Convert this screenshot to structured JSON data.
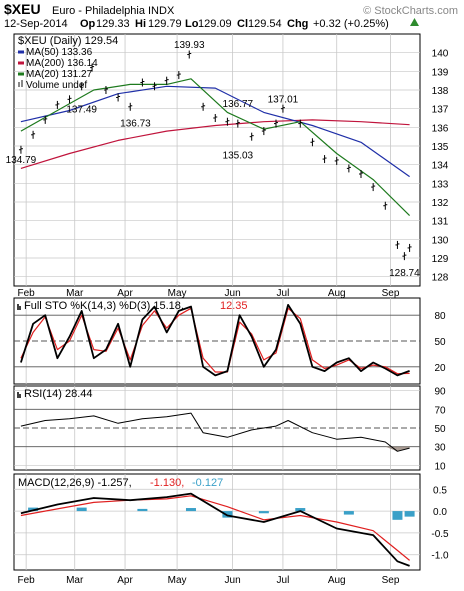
{
  "header": {
    "symbol": "$XEU",
    "description": "Euro - Philadelphia INDX",
    "watermark": "© StockCharts.com",
    "date": "12-Sep-2014",
    "quote": {
      "op_label": "Op",
      "op": "129.33",
      "hi_label": "Hi",
      "hi": "129.79",
      "lo_label": "Lo",
      "lo": "129.09",
      "cl_label": "Cl",
      "cl": "129.54",
      "chg_label": "Chg",
      "chg": "+0.32 (+0.25%)"
    },
    "trend_icon": "up-triangle-icon"
  },
  "colors": {
    "price": "#000000",
    "ma50": "#1f2fa8",
    "ma200": "#c0143c",
    "ma20": "#1e7a1e",
    "sto_k": "#000000",
    "sto_d": "#e02020",
    "rsi": "#000000",
    "macd": "#000000",
    "signal": "#e02020",
    "hist": "#3aa0c8",
    "grid": "#c8c8c8",
    "refline": "#555555"
  },
  "legend": [
    {
      "text": "$XEU (Daily) 129.54"
    },
    {
      "text": "MA(50) 133.36"
    },
    {
      "text": "MA(200) 136.14"
    },
    {
      "text": "MA(20) 131.27"
    },
    {
      "text": "Volume undef"
    }
  ],
  "chart_data": [
    {
      "type": "line",
      "panel": "price",
      "title": "$XEU (Daily) 129.54",
      "ylim": [
        127.5,
        141
      ],
      "y_ticks": [
        "140",
        "139",
        "138",
        "137",
        "136",
        "135",
        "134",
        "133",
        "132",
        "131",
        "130",
        "129",
        "128"
      ],
      "x_tick_labels": [
        "Feb",
        "Mar",
        "Apr",
        "May",
        "Jun",
        "Jul",
        "Aug",
        "Sep"
      ],
      "x_tick_dates": [
        "2014-02-03",
        "2014-03-03",
        "2014-04-01",
        "2014-05-01",
        "2014-06-02",
        "2014-07-01",
        "2014-08-01",
        "2014-09-01"
      ],
      "x_range": [
        "2014-01-27",
        "2014-09-18"
      ],
      "series": [
        {
          "name": "$XEU (Daily)",
          "x": [
            "2014-01-31",
            "2014-02-07",
            "2014-02-14",
            "2014-02-21",
            "2014-02-28",
            "2014-03-07",
            "2014-03-13",
            "2014-03-21",
            "2014-03-28",
            "2014-04-04",
            "2014-04-11",
            "2014-04-18",
            "2014-04-25",
            "2014-05-02",
            "2014-05-08",
            "2014-05-16",
            "2014-05-23",
            "2014-05-30",
            "2014-06-05",
            "2014-06-13",
            "2014-06-20",
            "2014-06-27",
            "2014-07-01",
            "2014-07-11",
            "2014-07-18",
            "2014-07-25",
            "2014-08-01",
            "2014-08-08",
            "2014-08-15",
            "2014-08-22",
            "2014-08-29",
            "2014-09-05",
            "2014-09-09",
            "2014-09-12"
          ],
          "values": [
            134.8,
            135.6,
            136.4,
            137.2,
            137.5,
            138.2,
            139.2,
            138.0,
            137.6,
            137.1,
            138.4,
            138.2,
            138.5,
            138.8,
            139.9,
            137.1,
            136.5,
            136.3,
            136.2,
            135.5,
            135.8,
            136.2,
            137.0,
            136.2,
            135.2,
            134.3,
            134.2,
            133.8,
            133.5,
            132.8,
            131.8,
            129.7,
            129.1,
            129.54
          ]
        },
        {
          "name": "MA(50)",
          "x": [
            "2014-01-31",
            "2014-02-28",
            "2014-03-28",
            "2014-04-25",
            "2014-05-23",
            "2014-06-20",
            "2014-07-18",
            "2014-08-15",
            "2014-09-12"
          ],
          "values": [
            136.3,
            136.9,
            137.8,
            138.2,
            138.1,
            136.8,
            136.1,
            135.2,
            133.36
          ]
        },
        {
          "name": "MA(200)",
          "x": [
            "2014-01-31",
            "2014-02-28",
            "2014-03-28",
            "2014-04-25",
            "2014-05-23",
            "2014-06-20",
            "2014-07-18",
            "2014-08-15",
            "2014-09-12"
          ],
          "values": [
            133.8,
            134.6,
            135.3,
            135.8,
            136.1,
            136.3,
            136.4,
            136.3,
            136.14
          ]
        },
        {
          "name": "MA(20)",
          "x": [
            "2014-01-31",
            "2014-02-21",
            "2014-03-14",
            "2014-04-04",
            "2014-04-25",
            "2014-05-09",
            "2014-05-30",
            "2014-06-20",
            "2014-07-11",
            "2014-08-01",
            "2014-08-22",
            "2014-09-12"
          ],
          "values": [
            135.8,
            136.9,
            138.0,
            138.3,
            138.3,
            138.6,
            136.8,
            135.9,
            136.3,
            134.6,
            133.2,
            131.27
          ]
        }
      ],
      "annotations": [
        {
          "date": "2014-01-31",
          "value": 134.79,
          "text": "134.79",
          "pos": "below"
        },
        {
          "date": "2014-03-07",
          "value": 137.49,
          "text": "137.49",
          "pos": "below"
        },
        {
          "date": "2014-04-07",
          "value": 136.73,
          "text": "136.73",
          "pos": "below"
        },
        {
          "date": "2014-05-08",
          "value": 139.93,
          "text": "139.93",
          "pos": "above"
        },
        {
          "date": "2014-06-05",
          "value": 136.77,
          "text": "136.77",
          "pos": "above"
        },
        {
          "date": "2014-06-05",
          "value": 135.03,
          "text": "135.03",
          "pos": "below"
        },
        {
          "date": "2014-07-01",
          "value": 137.01,
          "text": "137.01",
          "pos": "above"
        },
        {
          "date": "2014-09-09",
          "value": 128.74,
          "text": "128.74",
          "pos": "below"
        }
      ]
    },
    {
      "type": "line",
      "panel": "sto",
      "title": "Full STO %K(14,3) %D(3) 15.18, 12.35",
      "ylim": [
        0,
        100
      ],
      "y_ticks": [
        "80",
        "50",
        "20"
      ],
      "ref_lines": [
        80,
        50,
        20
      ],
      "series": [
        {
          "name": "%K",
          "x": [
            "2014-01-31",
            "2014-02-07",
            "2014-02-14",
            "2014-02-21",
            "2014-02-28",
            "2014-03-07",
            "2014-03-14",
            "2014-03-21",
            "2014-03-28",
            "2014-04-04",
            "2014-04-11",
            "2014-04-18",
            "2014-04-25",
            "2014-05-02",
            "2014-05-09",
            "2014-05-16",
            "2014-05-23",
            "2014-05-30",
            "2014-06-06",
            "2014-06-13",
            "2014-06-20",
            "2014-06-27",
            "2014-07-04",
            "2014-07-11",
            "2014-07-18",
            "2014-07-25",
            "2014-08-01",
            "2014-08-08",
            "2014-08-15",
            "2014-08-22",
            "2014-08-29",
            "2014-09-05",
            "2014-09-12"
          ],
          "values": [
            25,
            70,
            80,
            30,
            55,
            85,
            30,
            40,
            70,
            20,
            75,
            90,
            60,
            85,
            90,
            20,
            10,
            15,
            80,
            55,
            20,
            40,
            92,
            70,
            20,
            15,
            25,
            30,
            15,
            25,
            18,
            10,
            15.18
          ]
        },
        {
          "name": "%D",
          "x": [
            "2014-01-31",
            "2014-02-07",
            "2014-02-14",
            "2014-02-21",
            "2014-02-28",
            "2014-03-07",
            "2014-03-14",
            "2014-03-21",
            "2014-03-28",
            "2014-04-04",
            "2014-04-11",
            "2014-04-18",
            "2014-04-25",
            "2014-05-02",
            "2014-05-09",
            "2014-05-16",
            "2014-05-23",
            "2014-05-30",
            "2014-06-06",
            "2014-06-13",
            "2014-06-20",
            "2014-06-27",
            "2014-07-04",
            "2014-07-11",
            "2014-07-18",
            "2014-07-25",
            "2014-08-01",
            "2014-08-08",
            "2014-08-15",
            "2014-08-22",
            "2014-08-29",
            "2014-09-05",
            "2014-09-12"
          ],
          "values": [
            30,
            60,
            78,
            40,
            50,
            80,
            40,
            38,
            65,
            28,
            68,
            85,
            65,
            80,
            88,
            30,
            14,
            14,
            72,
            58,
            28,
            36,
            88,
            76,
            28,
            18,
            22,
            28,
            18,
            22,
            20,
            12,
            12.35
          ]
        }
      ]
    },
    {
      "type": "line",
      "panel": "rsi",
      "title": "RSI(14) 28.44",
      "ylim": [
        5,
        95
      ],
      "y_ticks": [
        "90",
        "70",
        "50",
        "30",
        "10"
      ],
      "ref_lines": [
        70,
        50,
        30
      ],
      "series": [
        {
          "name": "RSI(14)",
          "x": [
            "2014-01-31",
            "2014-02-14",
            "2014-02-28",
            "2014-03-14",
            "2014-03-28",
            "2014-04-11",
            "2014-04-25",
            "2014-05-09",
            "2014-05-16",
            "2014-05-30",
            "2014-06-13",
            "2014-06-27",
            "2014-07-04",
            "2014-07-18",
            "2014-08-01",
            "2014-08-15",
            "2014-08-29",
            "2014-09-05",
            "2014-09-12"
          ],
          "values": [
            52,
            58,
            60,
            63,
            55,
            60,
            62,
            66,
            45,
            40,
            48,
            52,
            58,
            45,
            38,
            40,
            35,
            25,
            28.44
          ]
        }
      ]
    },
    {
      "type": "line",
      "panel": "macd",
      "title": "MACD(12,26,9) -1.257, -1.130, -0.127",
      "ylim": [
        -1.35,
        0.85
      ],
      "y_ticks": [
        "0.5",
        "0.0",
        "-0.5",
        "-1.0"
      ],
      "series": [
        {
          "name": "MACD",
          "x": [
            "2014-01-31",
            "2014-02-21",
            "2014-03-14",
            "2014-04-04",
            "2014-04-25",
            "2014-05-09",
            "2014-05-30",
            "2014-06-20",
            "2014-07-11",
            "2014-08-01",
            "2014-08-22",
            "2014-09-05",
            "2014-09-12"
          ],
          "values": [
            -0.05,
            0.15,
            0.3,
            0.25,
            0.32,
            0.4,
            -0.1,
            -0.25,
            0.0,
            -0.4,
            -0.55,
            -1.15,
            -1.257
          ]
        },
        {
          "name": "Signal",
          "x": [
            "2014-01-31",
            "2014-02-21",
            "2014-03-14",
            "2014-04-04",
            "2014-04-25",
            "2014-05-09",
            "2014-05-30",
            "2014-06-20",
            "2014-07-11",
            "2014-08-01",
            "2014-08-22",
            "2014-09-05",
            "2014-09-12"
          ],
          "values": [
            -0.1,
            0.05,
            0.2,
            0.25,
            0.28,
            0.35,
            0.1,
            -0.2,
            -0.1,
            -0.25,
            -0.45,
            -0.9,
            -1.13
          ]
        },
        {
          "name": "Histogram",
          "x": [
            "2014-02-07",
            "2014-03-07",
            "2014-04-11",
            "2014-05-09",
            "2014-05-30",
            "2014-06-20",
            "2014-07-11",
            "2014-08-08",
            "2014-09-05",
            "2014-09-12"
          ],
          "values": [
            0.08,
            0.08,
            0.05,
            0.07,
            -0.15,
            -0.05,
            0.07,
            -0.08,
            -0.2,
            -0.127
          ]
        }
      ]
    }
  ],
  "panel_titles": {
    "sto": {
      "main": "Full STO %K(14,3) %D(3) 15.18,",
      "d_val": "12.35"
    },
    "rsi": {
      "main": "RSI(14) 28.44"
    },
    "macd": {
      "main": "MACD(12,26,9) -1.257,",
      "sig": "-1.130,",
      "hist": "-0.127"
    }
  }
}
